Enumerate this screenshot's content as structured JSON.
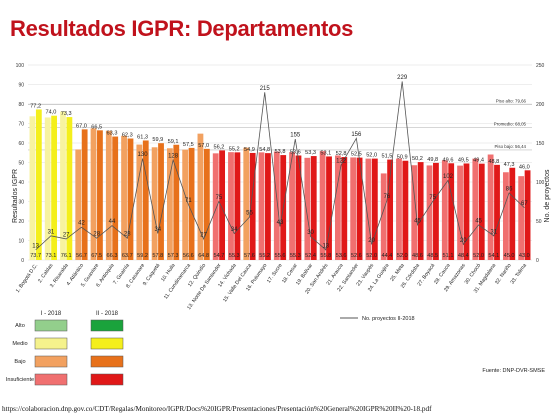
{
  "page": {
    "title": "Resultados IGPR: Departamentos",
    "source_url": "https://colaboracion.dnp.gov.co/CDT/Regalas/Monitoreo/IGPR/Docs%20IGPR/Presentaciones/Presentación%20General%20IGPR%20II%20-18.pdf"
  },
  "chart_data": {
    "type": "bar",
    "ylabel": "Resultados IGPR",
    "y2label": "No. de proyectos",
    "ylim": [
      0,
      100
    ],
    "y2lim": [
      0,
      250
    ],
    "yticks": [
      "0",
      "10",
      "20",
      "30",
      "40",
      "50",
      "60",
      "70",
      "80",
      "90",
      "100"
    ],
    "y2ticks": [
      "0",
      "50",
      "100",
      "150",
      "200",
      "250"
    ],
    "categories": [
      "1. Bogotá D.C.",
      "2. Caldas",
      "3. Risaralda",
      "4. Atlántico",
      "5. Guaviare",
      "6. Antioquia",
      "7. Guainía",
      "8. Casanare",
      "9. Caquetá",
      "10. Huila",
      "11. Cundinamarca",
      "12. Quindío",
      "13. Norte De Santander",
      "14. Vichada",
      "15. Valle Del Cauca",
      "16. Putumayo",
      "17. Sucre",
      "18. Cesar",
      "19. Bolívar",
      "20. San Andrés",
      "21. Arauca",
      "22. Santander",
      "23. Vaupés",
      "24. La Guajira",
      "25. Meta",
      "26. Córdoba",
      "27. Boyacá",
      "28. Cauca",
      "29. Amazonas",
      "30. Chocó",
      "31. Magdalena",
      "32. Nariño",
      "33. Tolima"
    ],
    "series": [
      {
        "name": "I - 2018",
        "values": [
          73.7,
          73.1,
          76.1,
          56.7,
          67.5,
          66.3,
          63.7,
          59.2,
          57.8,
          57.3,
          56.6,
          64.8,
          54.7,
          55.3,
          57.6,
          55.2,
          55.6,
          55.3,
          52.4,
          55.8,
          53.6,
          52.6,
          52.0,
          44.4,
          52.0,
          48.6,
          48.5,
          51.1,
          48.4,
          52.0,
          54.1,
          45.0,
          43.0
        ],
        "labels": [
          "73.7",
          "73.1",
          "76.1",
          "56.7",
          "67.5",
          "66.3",
          "63.7",
          "59.2",
          "57.8",
          "57.3",
          "56.6",
          "64.8",
          "54.7",
          "55.3",
          "57.6",
          "55.2",
          "55.6",
          "55.3",
          "52.4",
          "55.8",
          "53.6",
          "52.6",
          "52.0",
          "44.4",
          "52.0",
          "48.6",
          "48.5",
          "51.1",
          "48.4",
          "52.0",
          "54.1",
          "45.0",
          "43.0"
        ]
      },
      {
        "name": "II - 2018",
        "values": [
          77.2,
          74.0,
          73.3,
          67.0,
          66.5,
          63.3,
          62.3,
          61.3,
          59.9,
          59.1,
          57.5,
          57.0,
          56.2,
          55.2,
          54.9,
          54.8,
          53.8,
          53.6,
          53.3,
          53.1,
          52.8,
          52.5,
          52.0,
          51.5,
          50.9,
          50.2,
          49.8,
          49.6,
          49.5,
          49.4,
          48.8,
          47.3,
          46.0
        ],
        "labels": [
          "77,2",
          "74,0",
          "73,3",
          "67,0",
          "66,5",
          "63,3",
          "62,3",
          "61,3",
          "59,9",
          "59,1",
          "57,5",
          "57,0",
          "56,2",
          "55,2",
          "54,9",
          "54,8",
          "53,8",
          "53,6",
          "53,3",
          "53,1",
          "52,8",
          "52,5",
          "52,0",
          "51,5",
          "50,9",
          "50,2",
          "49,8",
          "49,6",
          "49,5",
          "49,4",
          "48,8",
          "47,3",
          "46,0"
        ]
      },
      {
        "name": "No. proyectos II-2018",
        "axis": "right",
        "values": [
          13,
          31,
          27,
          42,
          28,
          44,
          28,
          130,
          34,
          128,
          71,
          27,
          75,
          34,
          55,
          215,
          43,
          155,
          30,
          13,
          122,
          156,
          20,
          76,
          229,
          45,
          75,
          102,
          20,
          45,
          31,
          86,
          67
        ],
        "labels": [
          "13",
          "31",
          "27",
          "42",
          "28",
          "44",
          "28",
          "130",
          "34",
          "128",
          "71",
          "27",
          "75",
          "34",
          "55",
          "215",
          "43",
          "155",
          "30",
          "13",
          "122",
          "156",
          "20",
          "76",
          "229",
          "45",
          "75",
          "102",
          "20",
          "45",
          "31",
          "86",
          "67"
        ]
      }
    ],
    "reference_lines": [
      {
        "label": "Piso alto: 79,66",
        "value": 79.66
      },
      {
        "label": "Promedio: 68,05",
        "value": 68.05
      },
      {
        "label": "Piso bajo: 56,44",
        "value": 56.44
      }
    ],
    "legend": {
      "headers": [
        "I - 2018",
        "II - 2018"
      ],
      "levels": [
        "Alto",
        "Medio",
        "Bajo",
        "Insuficiente"
      ],
      "level_colors_i": [
        "#93cf8c",
        "#f5f28c",
        "#f2a160",
        "#f07070"
      ],
      "level_colors_ii": [
        "#1aa33c",
        "#f4ef1c",
        "#e7711b",
        "#e01818"
      ],
      "line_label": "No. proyectos II-2018",
      "source": "Fuente: DNP-DVR-SMSE"
    },
    "colors": {
      "title": "#c0121c",
      "alto_i": "#93cf8c",
      "alto_ii": "#1aa33c",
      "medio_i": "#f7f3a0",
      "medio_ii": "#f4ef1c",
      "bajo_i": "#f2a160",
      "bajo_ii": "#e7711b",
      "insuf_i": "#f07070",
      "insuf_ii": "#e01818",
      "line": "#555555"
    }
  }
}
